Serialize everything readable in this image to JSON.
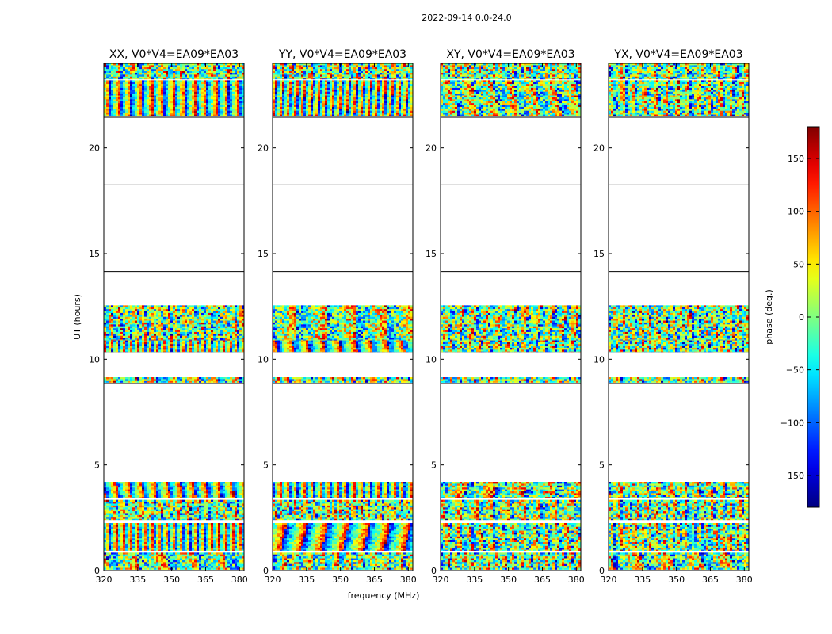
{
  "chart_data": {
    "type": "heatmap",
    "suptitle": "2022-09-14 0.0-24.0",
    "xlabel": "frequency (MHz)",
    "ylabel": "UT (hours)",
    "xlim": [
      320,
      382
    ],
    "ylim": [
      0,
      24
    ],
    "x_ticks": [
      320,
      335,
      350,
      365,
      380
    ],
    "y_ticks": [
      0,
      5,
      10,
      15,
      20
    ],
    "panels": [
      {
        "title": "XX, V0*V4=EA09*EA03"
      },
      {
        "title": "YY, V0*V4=EA09*EA03"
      },
      {
        "title": "XY, V0*V4=EA09*EA03"
      },
      {
        "title": "YX, V0*V4=EA09*EA03"
      }
    ],
    "horizontal_lines_ut": [
      8.85,
      10.3,
      14.15,
      18.25,
      21.45
    ],
    "data_bands_ut": [
      [
        0.05,
        0.85
      ],
      [
        0.95,
        2.25
      ],
      [
        2.4,
        3.35
      ],
      [
        3.45,
        4.2
      ],
      [
        8.9,
        9.15
      ],
      [
        10.35,
        10.9
      ],
      [
        10.9,
        12.55
      ],
      [
        21.5,
        23.2
      ],
      [
        23.25,
        24.0
      ]
    ],
    "colorbar": {
      "label": "phase (deg.)",
      "vmin": -180,
      "vmax": 180,
      "ticks": [
        -150,
        -100,
        -50,
        0,
        50,
        100,
        150
      ],
      "colormap": "jet"
    }
  }
}
